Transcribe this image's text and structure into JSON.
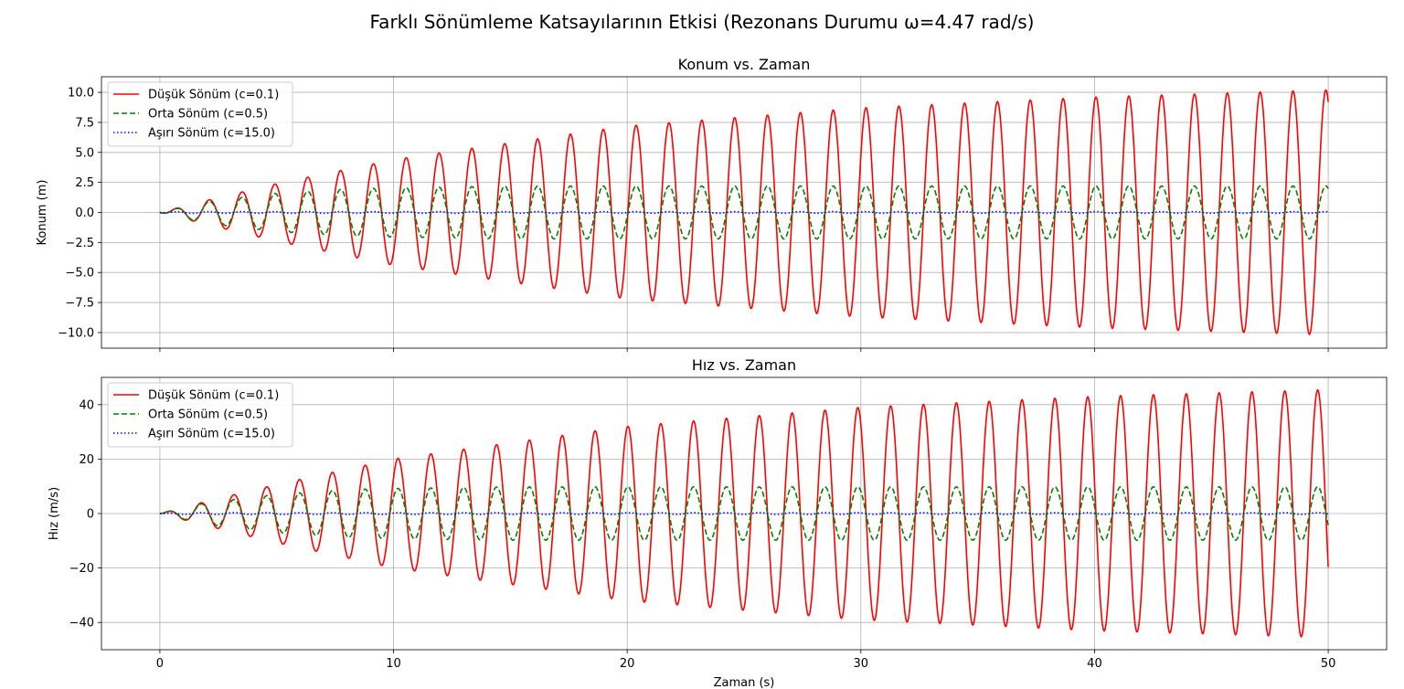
{
  "suptitle": "Farklı Sönümleme Katsayılarının Etkisi (Rezonans Durumu ω=4.47 rad/s)",
  "chart_data": [
    {
      "type": "line",
      "title": "Konum vs. Zaman",
      "xlabel": "",
      "ylabel": "Konum (m)",
      "xlim": [
        -2.5,
        52.5
      ],
      "ylim": [
        -11.3,
        11.3
      ],
      "xticks": [
        0,
        10,
        20,
        30,
        40,
        50
      ],
      "yticks": [
        10.0,
        7.5,
        5.0,
        2.5,
        0.0,
        -2.5,
        -5.0,
        -7.5,
        -10.0
      ],
      "ytick_labels": [
        "10.0",
        "7.5",
        "5.0",
        "2.5",
        "0.0",
        "−2.5",
        "−5.0",
        "−7.5",
        "−10.0"
      ],
      "grid": true,
      "legend": "top-left",
      "omega": 4.47,
      "series": [
        {
          "name": "Düşük Sönüm (c=0.1)",
          "color": "#ff0000",
          "dash": "solid",
          "envelope_t": [
            0,
            2,
            5,
            10,
            20,
            30,
            40,
            50
          ],
          "envelope_amp": [
            0,
            1.0,
            2.4,
            4.4,
            7.2,
            8.7,
            9.6,
            10.2
          ]
        },
        {
          "name": "Orta Sönüm (c=0.5)",
          "color": "#008000",
          "dash": "dashed",
          "envelope_t": [
            0,
            2,
            5,
            8,
            10,
            15,
            50
          ],
          "envelope_amp": [
            0,
            0.9,
            1.6,
            1.95,
            2.05,
            2.2,
            2.2
          ]
        },
        {
          "name": "Aşırı Sönüm (c=15.0)",
          "color": "#0000ff",
          "dash": "dotted",
          "envelope_t": [
            0,
            1,
            50
          ],
          "envelope_amp": [
            0,
            0.07,
            0.07
          ]
        }
      ]
    },
    {
      "type": "line",
      "title": "Hız vs. Zaman",
      "xlabel": "Zaman (s)",
      "ylabel": "Hız (m/s)",
      "xlim": [
        -2.5,
        52.5
      ],
      "ylim": [
        -50,
        50
      ],
      "xticks": [
        0,
        10,
        20,
        30,
        40,
        50
      ],
      "yticks": [
        40,
        20,
        0,
        -20,
        -40
      ],
      "ytick_labels": [
        "40",
        "20",
        "0",
        "−20",
        "−40"
      ],
      "grid": true,
      "legend": "top-left",
      "omega": 4.47,
      "series": [
        {
          "name": "Düşük Sönüm (c=0.1)",
          "color": "#ff0000",
          "dash": "solid",
          "envelope_t": [
            0,
            2,
            5,
            10,
            20,
            30,
            40,
            50
          ],
          "envelope_amp": [
            0,
            4.5,
            10.7,
            20,
            32,
            39,
            43,
            45.5
          ]
        },
        {
          "name": "Orta Sönüm (c=0.5)",
          "color": "#008000",
          "dash": "dashed",
          "envelope_t": [
            0,
            2,
            5,
            8,
            10,
            15,
            50
          ],
          "envelope_amp": [
            0,
            4.0,
            7.0,
            8.8,
            9.2,
            9.8,
            9.8
          ]
        },
        {
          "name": "Aşırı Sönüm (c=15.0)",
          "color": "#0000ff",
          "dash": "dotted",
          "envelope_t": [
            0,
            1,
            50
          ],
          "envelope_amp": [
            0,
            0.3,
            0.3
          ]
        }
      ]
    }
  ]
}
